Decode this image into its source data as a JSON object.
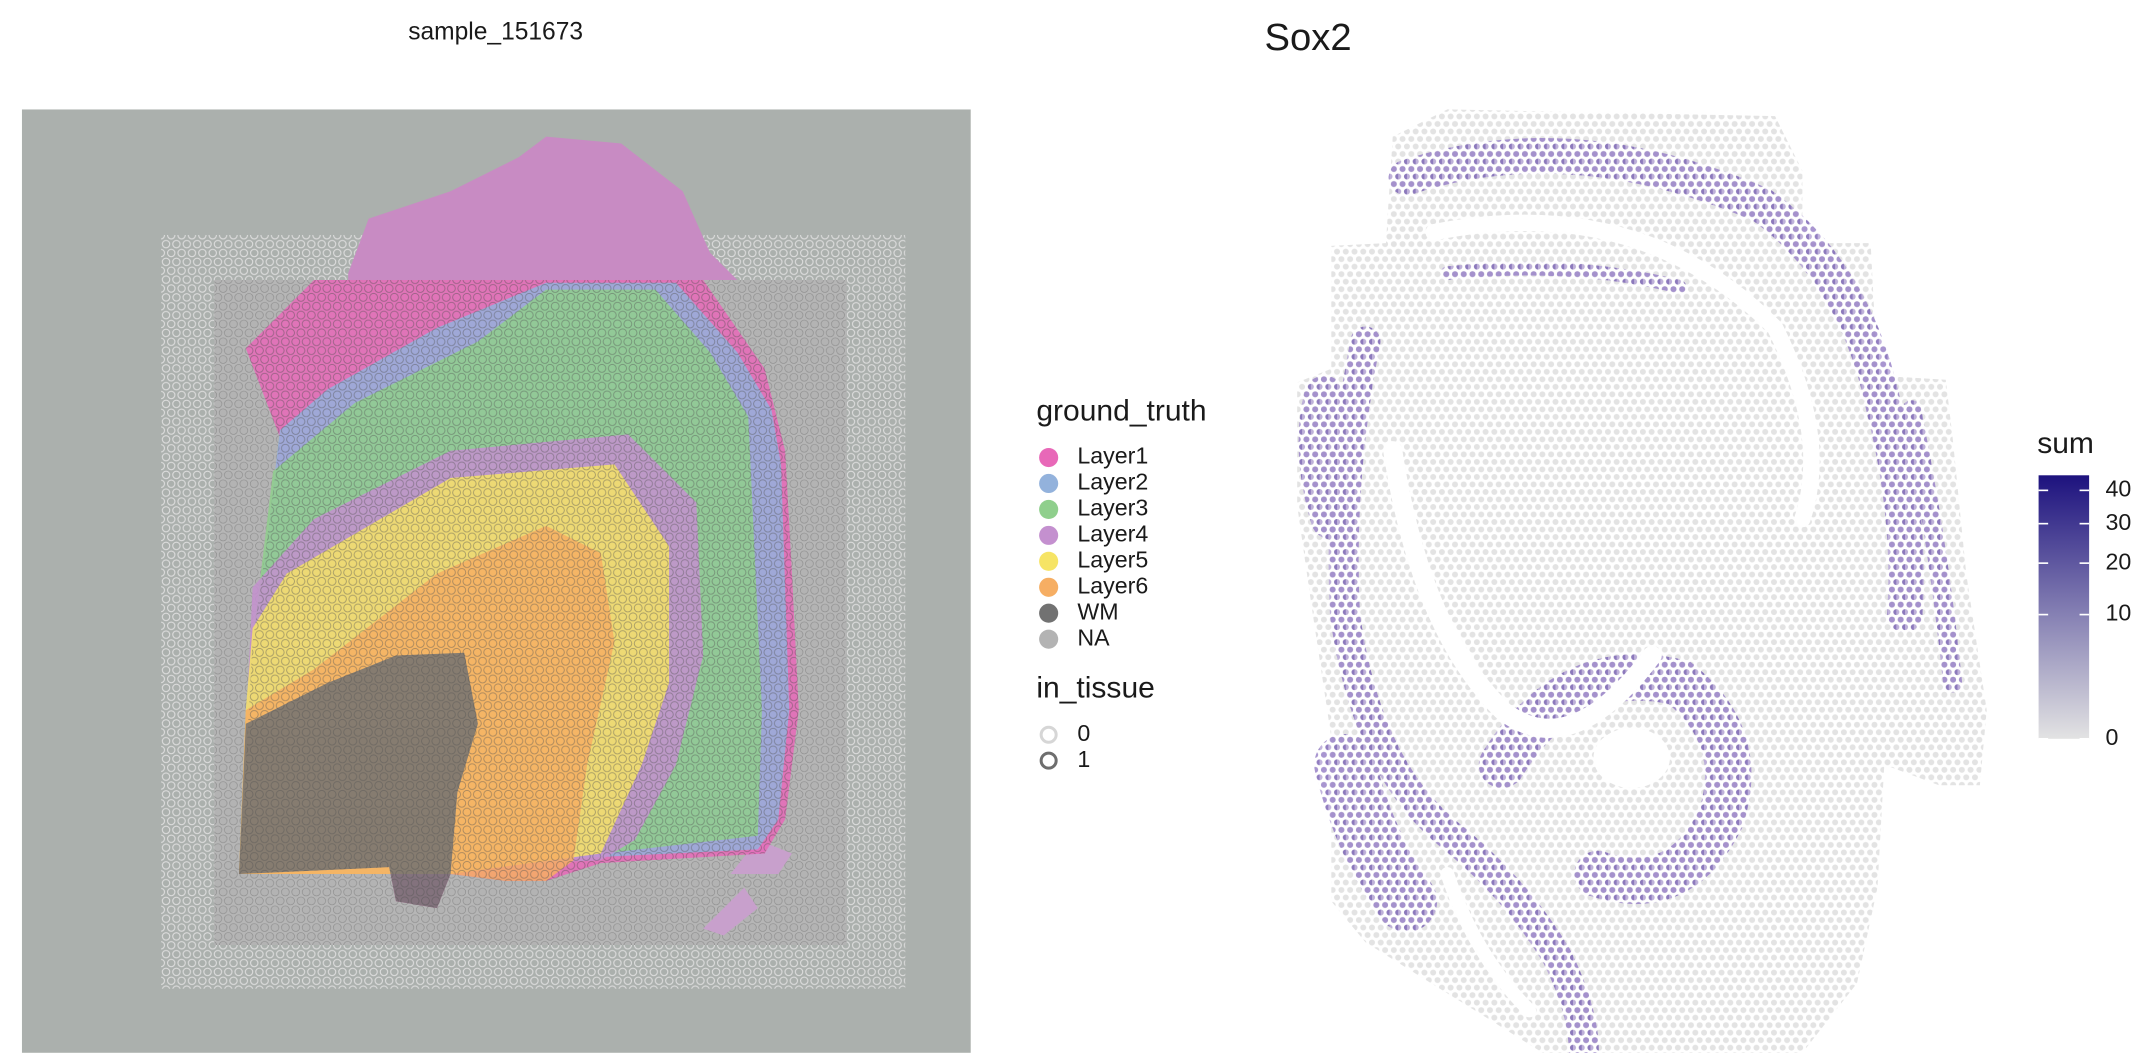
{
  "chart_data": [
    {
      "type": "spatial",
      "title": "sample_151673",
      "legends": [
        {
          "title": "ground_truth",
          "kind": "fill",
          "entries": [
            {
              "name": "Layer1",
              "color": "#e868b8"
            },
            {
              "name": "Layer2",
              "color": "#93b2dc"
            },
            {
              "name": "Layer3",
              "color": "#8fcf8c"
            },
            {
              "name": "Layer4",
              "color": "#c490cf"
            },
            {
              "name": "Layer5",
              "color": "#f6e465"
            },
            {
              "name": "Layer6",
              "color": "#f6ae63"
            },
            {
              "name": "WM",
              "color": "#727272"
            },
            {
              "name": "NA",
              "color": "#b3b3b3"
            }
          ]
        },
        {
          "title": "in_tissue",
          "kind": "stroke",
          "entries": [
            {
              "name": "0",
              "color": "#d6d6d6"
            },
            {
              "name": "1",
              "color": "#6e6e6e"
            }
          ]
        }
      ]
    },
    {
      "type": "spatial",
      "title": "Sox2",
      "colorbar": {
        "title": "sum",
        "lim": [
          0,
          45
        ],
        "ticks": [
          0,
          10,
          20,
          30,
          40
        ],
        "scale": "sqrt",
        "colors": [
          "#e3e3e3",
          "#1d127e"
        ]
      }
    }
  ]
}
